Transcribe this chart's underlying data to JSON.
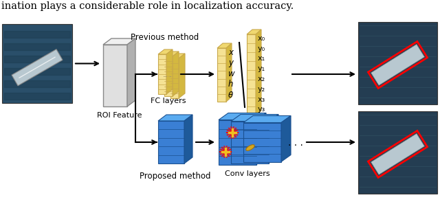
{
  "title_text": "ination plays a considerable role in localization accuracy.",
  "background_color": "#ffffff",
  "figsize": [
    6.4,
    2.97
  ],
  "dpi": 100,
  "fc_color_front": "#f5e294",
  "fc_color_top": "#f0d870",
  "fc_color_right": "#d4b840",
  "fc_edge": "#c8a84b",
  "blue_color_front": "#3a7fd4",
  "blue_color_top": "#5aabf0",
  "blue_color_right": "#1e5a9a",
  "blue_edge": "#1a5090",
  "roi_color_front": "#e0e0e0",
  "roi_color_top": "#f0f0f0",
  "roi_color_right": "#b0b0b0",
  "roi_edge": "#888888",
  "labels": {
    "previous_method": "Previous method",
    "roi_feature": "ROI Feature",
    "proposed_method": "Proposed method",
    "fc_layers": "FC layers",
    "conv_layers": "Conv layers"
  },
  "output_text_top": [
    "x",
    "y",
    "w",
    "h",
    "θ"
  ],
  "output_text_bottom": [
    "x₀",
    "y₀",
    "x₁",
    "y₁",
    "x₂",
    "y₂",
    "x₃",
    "y₃"
  ]
}
